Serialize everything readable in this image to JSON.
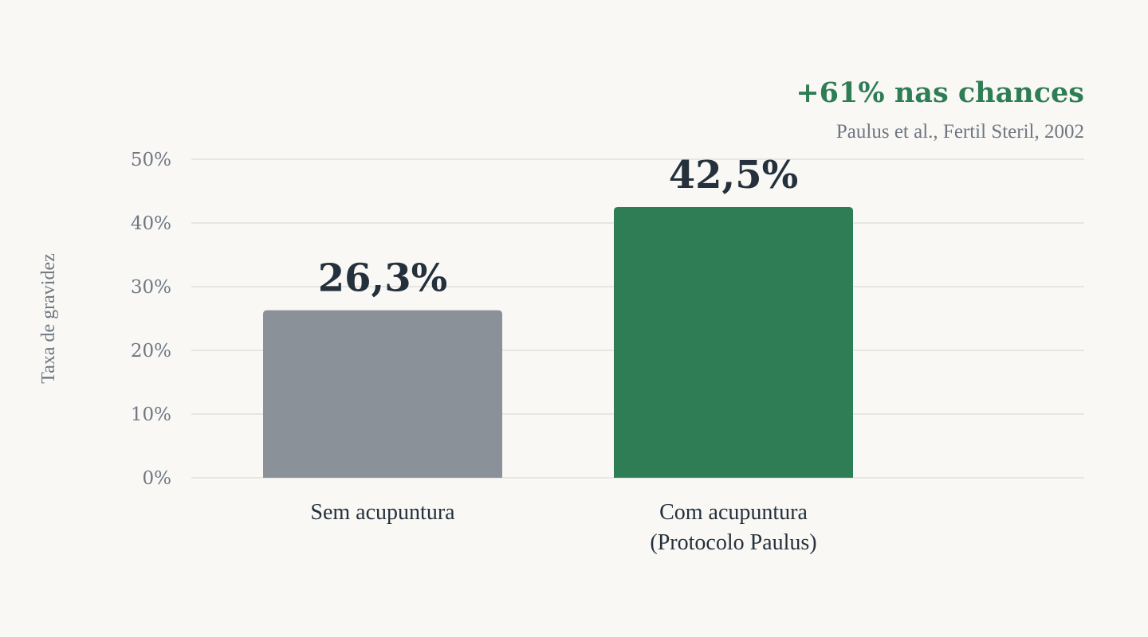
{
  "highlight": "+61% nas chances",
  "source": "Paulus et al., Fertil Steril, 2002",
  "chart_data": {
    "type": "bar",
    "ylabel": "Taxa de gravidez",
    "ylim": [
      0,
      50
    ],
    "yticks": [
      0,
      10,
      20,
      30,
      40,
      50
    ],
    "ytick_labels": [
      "0%",
      "10%",
      "20%",
      "30%",
      "40%",
      "50%"
    ],
    "grid": true,
    "categories": [
      [
        "Sem acupuntura"
      ],
      [
        "Com acupuntura",
        "(Protocolo Paulus)"
      ]
    ],
    "values": [
      26.3,
      42.5
    ],
    "value_labels": [
      "26,3%",
      "42,5%"
    ],
    "colors": [
      "#8b9198",
      "#2f7d55"
    ]
  }
}
